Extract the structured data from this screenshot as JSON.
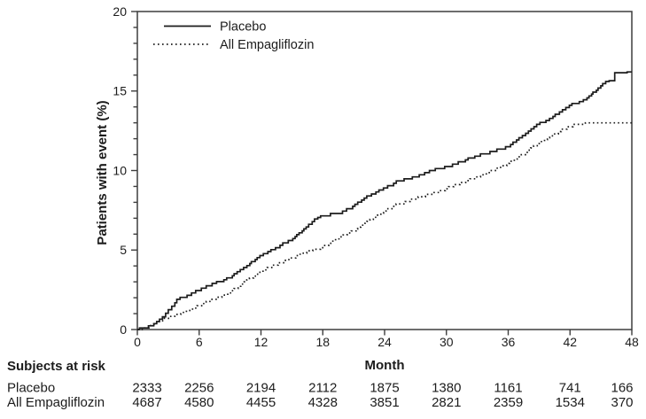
{
  "chart_data": {
    "type": "line",
    "subtype": "kaplan-meier-cumulative-incidence",
    "title": "",
    "xlabel": "Month",
    "ylabel": "Patients with event (%)",
    "xlim": [
      0,
      48
    ],
    "ylim": [
      0,
      20
    ],
    "x_ticks": [
      0,
      6,
      12,
      18,
      24,
      30,
      36,
      42,
      48
    ],
    "y_ticks_major": [
      0,
      5,
      10,
      15,
      20
    ],
    "y_minor_step": 1,
    "grid": false,
    "legend_position": "top-left-inside",
    "curve_style": "step",
    "line_color": "#1c1c1c",
    "frame_color": "#3d3d3d",
    "series": [
      {
        "name": "Placebo",
        "style": "solid",
        "points": [
          [
            0,
            0
          ],
          [
            1,
            0.1
          ],
          [
            2,
            0.5
          ],
          [
            2.6,
            0.8
          ],
          [
            3.2,
            1.25
          ],
          [
            4,
            1.9
          ],
          [
            5,
            2.15
          ],
          [
            6,
            2.45
          ],
          [
            7.5,
            2.9
          ],
          [
            9,
            3.25
          ],
          [
            10.5,
            3.9
          ],
          [
            12,
            4.65
          ],
          [
            13.5,
            5.15
          ],
          [
            15,
            5.6
          ],
          [
            16.5,
            6.45
          ],
          [
            17.3,
            6.95
          ],
          [
            18,
            7.15
          ],
          [
            19.8,
            7.3
          ],
          [
            21,
            7.75
          ],
          [
            22.5,
            8.4
          ],
          [
            24,
            8.9
          ],
          [
            25.5,
            9.35
          ],
          [
            27,
            9.6
          ],
          [
            28.5,
            10.0
          ],
          [
            30,
            10.25
          ],
          [
            31.5,
            10.55
          ],
          [
            33,
            10.9
          ],
          [
            34.5,
            11.2
          ],
          [
            36,
            11.5
          ],
          [
            37.5,
            12.2
          ],
          [
            39,
            12.9
          ],
          [
            40.5,
            13.4
          ],
          [
            42,
            14.1
          ],
          [
            43.5,
            14.45
          ],
          [
            44.6,
            15.05
          ],
          [
            45.6,
            15.6
          ],
          [
            46.2,
            15.65
          ],
          [
            46.4,
            16.15
          ],
          [
            48,
            16.2
          ]
        ]
      },
      {
        "name": "All Empagliflozin",
        "style": "dotted",
        "points": [
          [
            0,
            0
          ],
          [
            1,
            0.1
          ],
          [
            2,
            0.4
          ],
          [
            3,
            0.7
          ],
          [
            4,
            0.95
          ],
          [
            5,
            1.2
          ],
          [
            6,
            1.5
          ],
          [
            7.5,
            1.9
          ],
          [
            9,
            2.3
          ],
          [
            10.5,
            3.0
          ],
          [
            12,
            3.6
          ],
          [
            13.5,
            4.05
          ],
          [
            15,
            4.5
          ],
          [
            16.8,
            4.95
          ],
          [
            18,
            5.15
          ],
          [
            19.5,
            5.7
          ],
          [
            21,
            6.2
          ],
          [
            22.5,
            6.8
          ],
          [
            24,
            7.45
          ],
          [
            25.5,
            7.9
          ],
          [
            27,
            8.2
          ],
          [
            28.5,
            8.5
          ],
          [
            30,
            8.85
          ],
          [
            31.5,
            9.25
          ],
          [
            33,
            9.6
          ],
          [
            34.5,
            10.0
          ],
          [
            36,
            10.45
          ],
          [
            37.5,
            11.0
          ],
          [
            39,
            11.7
          ],
          [
            40.5,
            12.3
          ],
          [
            42,
            12.75
          ],
          [
            43,
            12.9
          ],
          [
            44,
            13.0
          ],
          [
            46.5,
            13.0
          ],
          [
            48,
            13.0
          ]
        ]
      }
    ]
  },
  "risk_table": {
    "title": "Subjects at risk",
    "months": [
      0,
      6,
      12,
      18,
      24,
      30,
      36,
      42,
      48
    ],
    "rows": [
      {
        "label": "Placebo",
        "values": [
          "2333",
          "2256",
          "2194",
          "2112",
          "1875",
          "1380",
          "1161",
          "741",
          "166"
        ]
      },
      {
        "label": "All Empagliflozin",
        "values": [
          "4687",
          "4580",
          "4455",
          "4328",
          "3851",
          "2821",
          "2359",
          "1534",
          "370"
        ]
      }
    ]
  }
}
